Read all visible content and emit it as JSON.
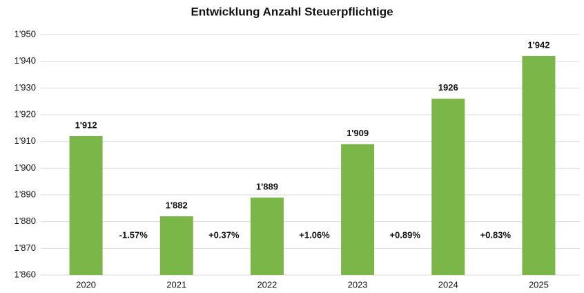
{
  "chart_data": {
    "type": "bar",
    "title": "Entwicklung Anzahl Steuerpflichtige",
    "categories": [
      "2020",
      "2021",
      "2022",
      "2023",
      "2024",
      "2025"
    ],
    "values": [
      1912,
      1882,
      1889,
      1909,
      1926,
      1942
    ],
    "value_labels": [
      "1'912",
      "1'882",
      "1'889",
      "1'909",
      "1926",
      "1'942"
    ],
    "annotations": [
      "-1.57%",
      "+0.37%",
      "+1.06%",
      "+0.89%",
      "+0.83%"
    ],
    "color": "#7ab648",
    "ylim": [
      1860,
      1950
    ],
    "yticks": [
      {
        "value": 1860,
        "label": "1'860"
      },
      {
        "value": 1870,
        "label": "1'870"
      },
      {
        "value": 1880,
        "label": "1'880"
      },
      {
        "value": 1890,
        "label": "1'890"
      },
      {
        "value": 1900,
        "label": "1'900"
      },
      {
        "value": 1910,
        "label": "1'910"
      },
      {
        "value": 1920,
        "label": "1'920"
      },
      {
        "value": 1930,
        "label": "1'930"
      },
      {
        "value": 1940,
        "label": "1'940"
      },
      {
        "value": 1950,
        "label": "1'950"
      }
    ],
    "grid": true
  }
}
